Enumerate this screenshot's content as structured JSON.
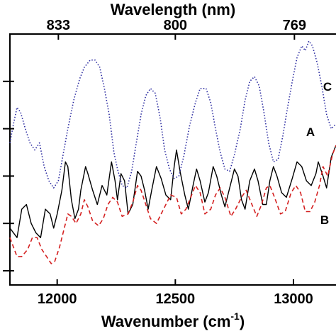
{
  "chart_data": {
    "type": "line",
    "title": "",
    "xlabel": "Wavenumber (cm",
    "xlabel_sup": "-1",
    "xlabel_close": ")",
    "x2label": "Wavelength (nm)",
    "ylabel": "",
    "xlim": [
      11800,
      13180
    ],
    "ylim": [
      0,
      5.3
    ],
    "x_ticks": [
      {
        "value": 12000,
        "label": "12000"
      },
      {
        "value": 12500,
        "label": "12500"
      },
      {
        "value": 13000,
        "label": "13000"
      }
    ],
    "x2_ticks": [
      {
        "value": 12005,
        "label": "833"
      },
      {
        "value": 12500,
        "label": "800"
      },
      {
        "value": 13004,
        "label": "769"
      }
    ],
    "y_ticks": [
      0.3,
      1.3,
      2.3,
      3.3,
      4.3
    ],
    "grid": false,
    "series": [
      {
        "name": "A",
        "color": "#000000",
        "dash": "solid",
        "points": [
          [
            11800,
            1.2
          ],
          [
            11830,
            1.0
          ],
          [
            11850,
            1.6
          ],
          [
            11870,
            1.7
          ],
          [
            11890,
            1.3
          ],
          [
            11910,
            1.1
          ],
          [
            11930,
            1.0
          ],
          [
            11950,
            1.6
          ],
          [
            11970,
            1.5
          ],
          [
            11985,
            1.2
          ],
          [
            12000,
            1.5
          ],
          [
            12020,
            2.0
          ],
          [
            12035,
            2.6
          ],
          [
            12045,
            2.5
          ],
          [
            12060,
            1.8
          ],
          [
            12075,
            1.4
          ],
          [
            12090,
            1.6
          ],
          [
            12100,
            2.0
          ],
          [
            12120,
            2.5
          ],
          [
            12130,
            2.35
          ],
          [
            12150,
            2.0
          ],
          [
            12170,
            1.7
          ],
          [
            12190,
            2.1
          ],
          [
            12210,
            1.9
          ],
          [
            12230,
            2.6
          ],
          [
            12245,
            2.2
          ],
          [
            12255,
            1.8
          ],
          [
            12270,
            2.35
          ],
          [
            12285,
            2.2
          ],
          [
            12300,
            1.5
          ],
          [
            12320,
            1.7
          ],
          [
            12340,
            2.4
          ],
          [
            12355,
            2.3
          ],
          [
            12370,
            2.0
          ],
          [
            12385,
            1.6
          ],
          [
            12400,
            2.0
          ],
          [
            12420,
            2.5
          ],
          [
            12440,
            2.25
          ],
          [
            12460,
            1.9
          ],
          [
            12480,
            1.8
          ],
          [
            12495,
            2.5
          ],
          [
            12505,
            2.85
          ],
          [
            12520,
            2.4
          ],
          [
            12540,
            1.9
          ],
          [
            12555,
            1.6
          ],
          [
            12575,
            2.1
          ],
          [
            12590,
            2.45
          ],
          [
            12605,
            2.2
          ],
          [
            12625,
            1.75
          ],
          [
            12640,
            1.95
          ],
          [
            12660,
            2.5
          ],
          [
            12675,
            2.3
          ],
          [
            12695,
            1.9
          ],
          [
            12710,
            1.65
          ],
          [
            12730,
            2.05
          ],
          [
            12750,
            2.45
          ],
          [
            12765,
            2.3
          ],
          [
            12780,
            1.8
          ],
          [
            12795,
            1.6
          ],
          [
            12815,
            2.2
          ],
          [
            12835,
            2.45
          ],
          [
            12850,
            2.2
          ],
          [
            12870,
            1.7
          ],
          [
            12885,
            1.7
          ],
          [
            12900,
            2.2
          ],
          [
            12915,
            2.5
          ],
          [
            12930,
            2.3
          ],
          [
            12950,
            1.95
          ],
          [
            12970,
            1.85
          ],
          [
            12995,
            2.25
          ],
          [
            13015,
            2.6
          ],
          [
            13035,
            2.5
          ],
          [
            13055,
            2.2
          ],
          [
            13075,
            2.1
          ],
          [
            13095,
            2.35
          ],
          [
            13105,
            2.6
          ],
          [
            13125,
            2.3
          ],
          [
            13140,
            2.05
          ],
          [
            13160,
            2.7
          ],
          [
            13180,
            2.95
          ]
        ]
      },
      {
        "name": "B",
        "color": "#d42020",
        "dash": "dashed",
        "points": [
          [
            11800,
            1.0
          ],
          [
            11815,
            0.8
          ],
          [
            11830,
            0.6
          ],
          [
            11850,
            0.6
          ],
          [
            11875,
            0.75
          ],
          [
            11895,
            1.0
          ],
          [
            11915,
            1.0
          ],
          [
            11935,
            0.75
          ],
          [
            11955,
            0.6
          ],
          [
            11975,
            0.45
          ],
          [
            11990,
            0.5
          ],
          [
            12010,
            0.8
          ],
          [
            12030,
            1.2
          ],
          [
            12045,
            1.5
          ],
          [
            12060,
            1.45
          ],
          [
            12080,
            1.3
          ],
          [
            12100,
            1.5
          ],
          [
            12115,
            1.8
          ],
          [
            12130,
            1.65
          ],
          [
            12150,
            1.35
          ],
          [
            12175,
            1.25
          ],
          [
            12195,
            1.4
          ],
          [
            12215,
            1.7
          ],
          [
            12235,
            1.85
          ],
          [
            12255,
            1.75
          ],
          [
            12275,
            1.45
          ],
          [
            12300,
            1.5
          ],
          [
            12320,
            1.75
          ],
          [
            12340,
            2.1
          ],
          [
            12355,
            2.0
          ],
          [
            12375,
            1.7
          ],
          [
            12395,
            1.4
          ],
          [
            12420,
            1.3
          ],
          [
            12445,
            1.55
          ],
          [
            12465,
            1.75
          ],
          [
            12480,
            1.9
          ],
          [
            12505,
            1.85
          ],
          [
            12525,
            1.5
          ],
          [
            12545,
            1.6
          ],
          [
            12565,
            1.85
          ],
          [
            12585,
            2.1
          ],
          [
            12605,
            1.95
          ],
          [
            12625,
            1.5
          ],
          [
            12650,
            1.6
          ],
          [
            12670,
            1.9
          ],
          [
            12690,
            2.05
          ],
          [
            12710,
            1.85
          ],
          [
            12735,
            1.45
          ],
          [
            12755,
            1.6
          ],
          [
            12780,
            1.85
          ],
          [
            12800,
            2.0
          ],
          [
            12820,
            1.75
          ],
          [
            12845,
            1.45
          ],
          [
            12865,
            1.7
          ],
          [
            12885,
            2.05
          ],
          [
            12900,
            2.1
          ],
          [
            12920,
            1.85
          ],
          [
            12945,
            1.5
          ],
          [
            12965,
            1.55
          ],
          [
            12990,
            1.95
          ],
          [
            13010,
            2.1
          ],
          [
            13030,
            1.95
          ],
          [
            13050,
            1.55
          ],
          [
            13070,
            1.55
          ],
          [
            13090,
            1.75
          ],
          [
            13110,
            2.1
          ],
          [
            13125,
            2.5
          ],
          [
            13145,
            2.3
          ],
          [
            13165,
            2.75
          ],
          [
            13180,
            2.95
          ]
        ]
      },
      {
        "name": "C",
        "color": "#2a2aa0",
        "dash": "dotted",
        "points": [
          [
            11800,
            3.0
          ],
          [
            11815,
            3.4
          ],
          [
            11830,
            3.75
          ],
          [
            11845,
            3.65
          ],
          [
            11865,
            3.3
          ],
          [
            11885,
            3.0
          ],
          [
            11905,
            2.85
          ],
          [
            11925,
            3.0
          ],
          [
            11945,
            2.5
          ],
          [
            11965,
            2.2
          ],
          [
            11985,
            2.05
          ],
          [
            12005,
            2.2
          ],
          [
            12025,
            2.75
          ],
          [
            12045,
            3.3
          ],
          [
            12070,
            3.9
          ],
          [
            12095,
            4.35
          ],
          [
            12115,
            4.6
          ],
          [
            12140,
            4.75
          ],
          [
            12160,
            4.75
          ],
          [
            12180,
            4.6
          ],
          [
            12200,
            4.15
          ],
          [
            12220,
            3.6
          ],
          [
            12240,
            2.8
          ],
          [
            12255,
            2.45
          ],
          [
            12275,
            2.1
          ],
          [
            12295,
            2.05
          ],
          [
            12315,
            2.4
          ],
          [
            12335,
            3.0
          ],
          [
            12355,
            3.6
          ],
          [
            12375,
            4.0
          ],
          [
            12395,
            4.15
          ],
          [
            12415,
            4.05
          ],
          [
            12435,
            3.55
          ],
          [
            12455,
            2.85
          ],
          [
            12475,
            2.45
          ],
          [
            12495,
            2.25
          ],
          [
            12515,
            2.3
          ],
          [
            12535,
            2.7
          ],
          [
            12560,
            3.35
          ],
          [
            12585,
            3.85
          ],
          [
            12605,
            4.15
          ],
          [
            12630,
            4.15
          ],
          [
            12650,
            3.85
          ],
          [
            12670,
            3.3
          ],
          [
            12690,
            2.8
          ],
          [
            12710,
            2.45
          ],
          [
            12730,
            2.4
          ],
          [
            12750,
            2.75
          ],
          [
            12775,
            3.3
          ],
          [
            12795,
            3.9
          ],
          [
            12815,
            4.3
          ],
          [
            12835,
            4.4
          ],
          [
            12855,
            4.2
          ],
          [
            12875,
            3.65
          ],
          [
            12895,
            3.0
          ],
          [
            12915,
            2.6
          ],
          [
            12935,
            2.65
          ],
          [
            12955,
            3.15
          ],
          [
            12975,
            3.75
          ],
          [
            12995,
            4.3
          ],
          [
            13015,
            4.8
          ],
          [
            13035,
            5.05
          ],
          [
            13050,
            4.95
          ],
          [
            13065,
            5.15
          ],
          [
            13080,
            5.05
          ],
          [
            13100,
            4.7
          ],
          [
            13120,
            4.2
          ],
          [
            13140,
            3.6
          ],
          [
            13160,
            3.3
          ],
          [
            13180,
            3.4
          ]
        ]
      }
    ]
  }
}
